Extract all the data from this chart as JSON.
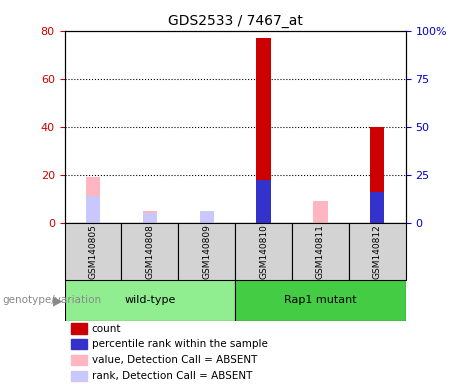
{
  "title": "GDS2533 / 7467_at",
  "samples": [
    "GSM140805",
    "GSM140808",
    "GSM140809",
    "GSM140810",
    "GSM140811",
    "GSM140812"
  ],
  "groups": [
    {
      "name": "wild-type",
      "indices": [
        0,
        1,
        2
      ],
      "color": "#90ee90"
    },
    {
      "name": "Rap1 mutant",
      "indices": [
        3,
        4,
        5
      ],
      "color": "#44cc44"
    }
  ],
  "count_values": [
    0,
    0,
    0,
    77,
    0,
    40
  ],
  "percentile_rank_values": [
    0,
    0,
    0,
    22,
    0,
    16
  ],
  "absent_value_values": [
    19,
    5,
    5,
    0,
    9,
    0
  ],
  "absent_rank_values": [
    11,
    4,
    5,
    0,
    0,
    0
  ],
  "count_color": "#cc0000",
  "percentile_color": "#3333cc",
  "absent_value_color": "#ffb6c1",
  "absent_rank_color": "#c8c8ff",
  "left_ylim": [
    0,
    80
  ],
  "right_ylim": [
    0,
    100
  ],
  "left_yticks": [
    0,
    20,
    40,
    60,
    80
  ],
  "right_yticks": [
    0,
    25,
    50,
    75,
    100
  ],
  "right_yticklabels": [
    "0",
    "25",
    "50",
    "75",
    "100%"
  ],
  "left_tick_color": "#cc0000",
  "right_tick_color": "#0000cc",
  "bar_width": 0.25,
  "group_label": "genotype/variation",
  "legend_items": [
    {
      "label": "count",
      "color": "#cc0000"
    },
    {
      "label": "percentile rank within the sample",
      "color": "#3333cc"
    },
    {
      "label": "value, Detection Call = ABSENT",
      "color": "#ffb6c1"
    },
    {
      "label": "rank, Detection Call = ABSENT",
      "color": "#c8c8ff"
    }
  ],
  "sample_box_color": "#d3d3d3",
  "plot_bg_color": "#ffffff",
  "fig_bg_color": "#ffffff"
}
